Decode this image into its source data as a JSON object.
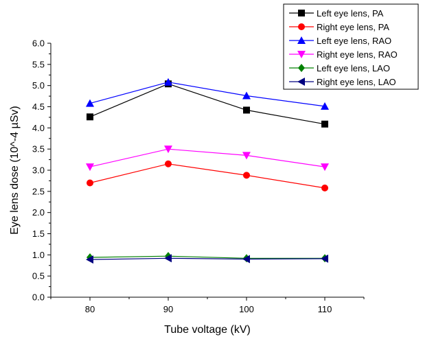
{
  "chart_data": {
    "type": "line",
    "x": [
      80,
      90,
      100,
      110
    ],
    "xlabel": "Tube voltage (kV)",
    "ylabel": "Eye lens dose (10^-4 µSv)",
    "xlim": [
      75,
      115
    ],
    "ylim": [
      0.0,
      6.0
    ],
    "x_ticks": [
      "80",
      "90",
      "100",
      "110"
    ],
    "y_ticks": [
      "0.0",
      "0.5",
      "1.0",
      "1.5",
      "2.0",
      "2.5",
      "3.0",
      "3.5",
      "4.0",
      "4.5",
      "5.0",
      "5.5",
      "6.0"
    ],
    "grid": false,
    "legend_position": "top-right",
    "series": [
      {
        "name": "Left eye lens, PA",
        "values": [
          4.26,
          5.04,
          4.42,
          4.09
        ],
        "color": "#000000",
        "marker": "square"
      },
      {
        "name": "Right eye lens, PA",
        "values": [
          2.7,
          3.15,
          2.88,
          2.58
        ],
        "color": "#ff0000",
        "marker": "circle"
      },
      {
        "name": "Left eye lens, RAO",
        "values": [
          4.58,
          5.08,
          4.76,
          4.51
        ],
        "color": "#0000ff",
        "marker": "triangle-up"
      },
      {
        "name": "Right eye lens, RAO",
        "values": [
          3.08,
          3.5,
          3.35,
          3.08
        ],
        "color": "#ff00ff",
        "marker": "triangle-down"
      },
      {
        "name": "Left eye lens, LAO",
        "values": [
          0.94,
          0.97,
          0.92,
          0.92
        ],
        "color": "#008000",
        "marker": "diamond"
      },
      {
        "name": "Right eye lens, LAO",
        "values": [
          0.89,
          0.92,
          0.9,
          0.91
        ],
        "color": "#000080",
        "marker": "triangle-left"
      }
    ]
  }
}
